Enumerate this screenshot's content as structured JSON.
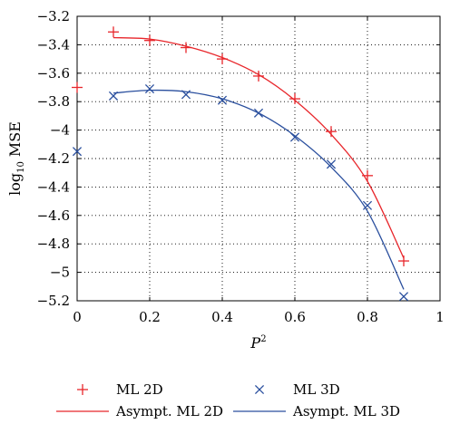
{
  "chart_data": {
    "type": "line",
    "xlabel": {
      "base": "P",
      "sup": "2"
    },
    "ylabel": {
      "prefix": "log",
      "sub": "10",
      "suffix": " MSE"
    },
    "xlim": [
      0,
      1
    ],
    "ylim": [
      -5.2,
      -3.2
    ],
    "xticks": [
      0,
      0.2,
      0.4,
      0.6,
      0.8,
      1
    ],
    "xtick_labels": [
      "0",
      "0.2",
      "0.4",
      "0.6",
      "0.8",
      "1"
    ],
    "yticks": [
      -3.2,
      -3.4,
      -3.6,
      -3.8,
      -4,
      -4.2,
      -4.4,
      -4.6,
      -4.8,
      -5,
      -5.2
    ],
    "ytick_labels": [
      "−3.2",
      "−3.4",
      "−3.6",
      "−3.8",
      "−4",
      "−4.2",
      "−4.4",
      "−4.6",
      "−4.8",
      "−5",
      "−5.2"
    ],
    "grid": true,
    "legend_placement": "bottom, below plot",
    "series": [
      {
        "name": "ML 2D",
        "kind": "marker",
        "marker": "plus",
        "color": "#e8262b",
        "x": [
          0,
          0.1,
          0.2,
          0.3,
          0.4,
          0.5,
          0.6,
          0.7,
          0.8,
          0.9
        ],
        "y": [
          -3.7,
          -3.31,
          -3.37,
          -3.42,
          -3.5,
          -3.62,
          -3.78,
          -4.01,
          -4.32,
          -4.92
        ]
      },
      {
        "name": "ML 3D",
        "kind": "marker",
        "marker": "cross",
        "color": "#2a4f9e",
        "x": [
          0,
          0.1,
          0.2,
          0.3,
          0.4,
          0.5,
          0.6,
          0.7,
          0.8,
          0.9
        ],
        "y": [
          -4.15,
          -3.76,
          -3.71,
          -3.75,
          -3.79,
          -3.88,
          -4.05,
          -4.24,
          -4.53,
          -5.17
        ]
      },
      {
        "name": "Asympt. ML 2D",
        "kind": "line",
        "color": "#e8262b",
        "x": [
          0.1,
          0.2,
          0.3,
          0.4,
          0.5,
          0.6,
          0.7,
          0.8,
          0.9
        ],
        "y": [
          -3.35,
          -3.36,
          -3.41,
          -3.49,
          -3.61,
          -3.79,
          -4.03,
          -4.36,
          -4.9
        ]
      },
      {
        "name": "Asympt. ML 3D",
        "kind": "line",
        "color": "#2a4f9e",
        "x": [
          0.1,
          0.2,
          0.3,
          0.4,
          0.5,
          0.6,
          0.7,
          0.8,
          0.9
        ],
        "y": [
          -3.74,
          -3.72,
          -3.73,
          -3.78,
          -3.88,
          -4.04,
          -4.26,
          -4.57,
          -5.12
        ]
      }
    ],
    "legend": [
      {
        "label": "ML 2D",
        "series": 0
      },
      {
        "label": "ML 3D",
        "series": 1
      },
      {
        "label": "Asympt. ML 2D",
        "series": 2
      },
      {
        "label": "Asympt. ML 3D",
        "series": 3
      }
    ]
  }
}
